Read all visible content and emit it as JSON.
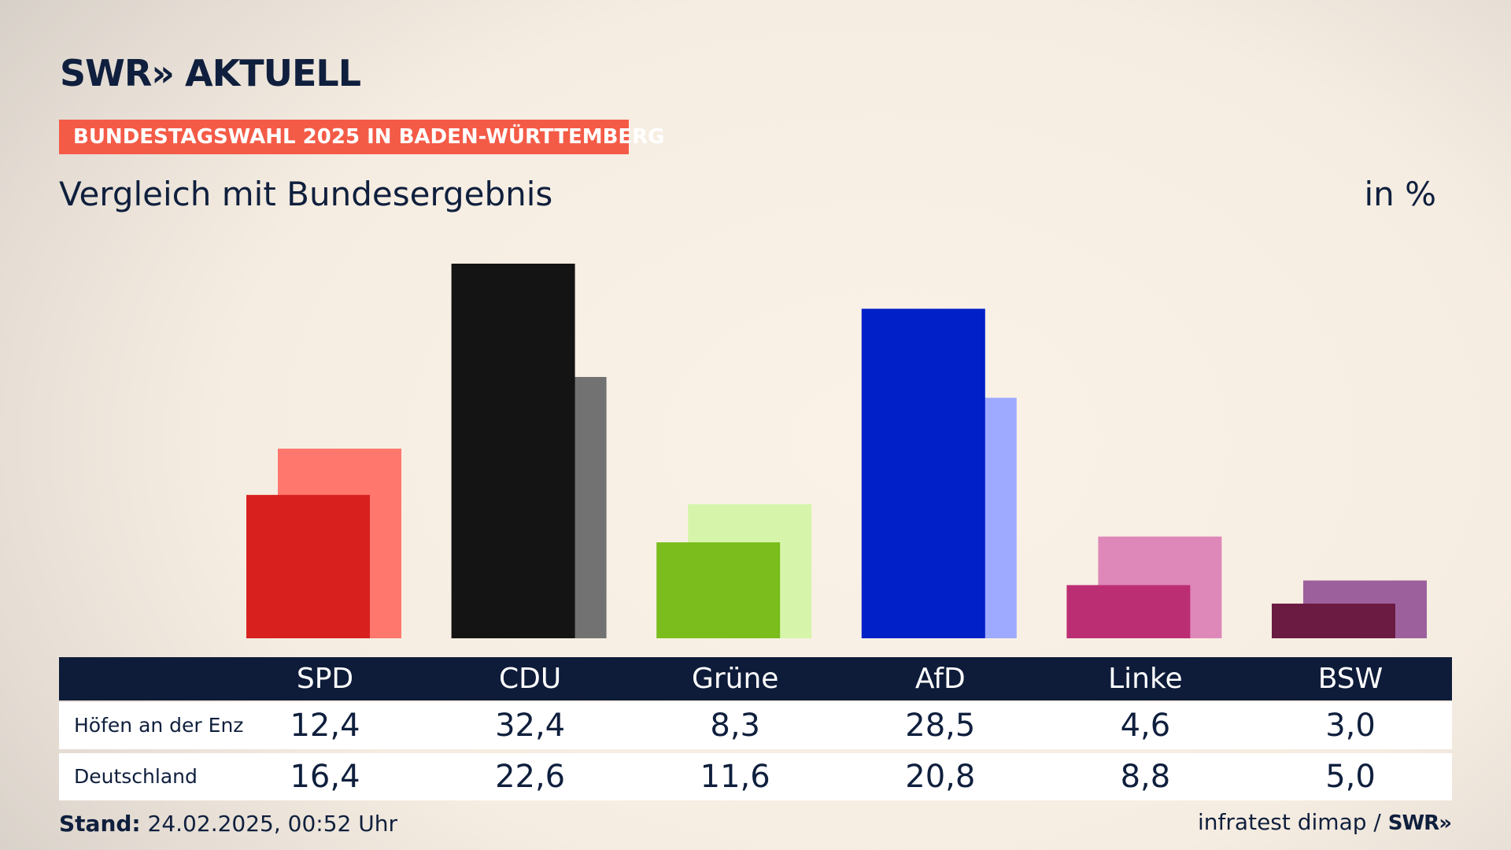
{
  "header": {
    "logo_left": "SWR",
    "logo_arrows": "»",
    "logo_right": "AKTUELL",
    "banner": "BUNDESTAGSWAHL 2025 IN BADEN-WÜRTTEMBERG",
    "subtitle": "Vergleich mit Bundesergebnis",
    "unit": "in %"
  },
  "table": {
    "row1_label": "Höfen an der Enz",
    "row2_label": "Deutschland"
  },
  "footer": {
    "stand_label": "Stand:",
    "stand_value": "24.02.2025, 00:52 Uhr",
    "source_text": "infratest dimap /",
    "source_logo": "SWR»"
  },
  "chart_data": {
    "type": "bar",
    "categories": [
      "SPD",
      "CDU",
      "Grüne",
      "AfD",
      "Linke",
      "BSW"
    ],
    "series": [
      {
        "name": "Höfen an der Enz",
        "values": [
          12.4,
          32.4,
          8.3,
          28.5,
          4.6,
          3.0
        ]
      },
      {
        "name": "Deutschland",
        "values": [
          16.4,
          22.6,
          11.6,
          20.8,
          8.8,
          5.0
        ]
      }
    ],
    "value_labels": {
      "Höfen an der Enz": [
        "12,4",
        "32,4",
        "8,3",
        "28,5",
        "4,6",
        "3,0"
      ],
      "Deutschland": [
        "16,4",
        "22,6",
        "11,6",
        "20,8",
        "8,8",
        "5,0"
      ]
    },
    "colors": {
      "primary": [
        "#d8211f",
        "#141414",
        "#7abd1d",
        "#0120c8",
        "#bc2e73",
        "#6b1a41"
      ],
      "secondary": [
        "#ff776d",
        "#727272",
        "#d6f5aa",
        "#9daaff",
        "#de88b9",
        "#9c619d"
      ]
    },
    "ylim": [
      0,
      35
    ],
    "grid": false,
    "legend": "table-below"
  }
}
